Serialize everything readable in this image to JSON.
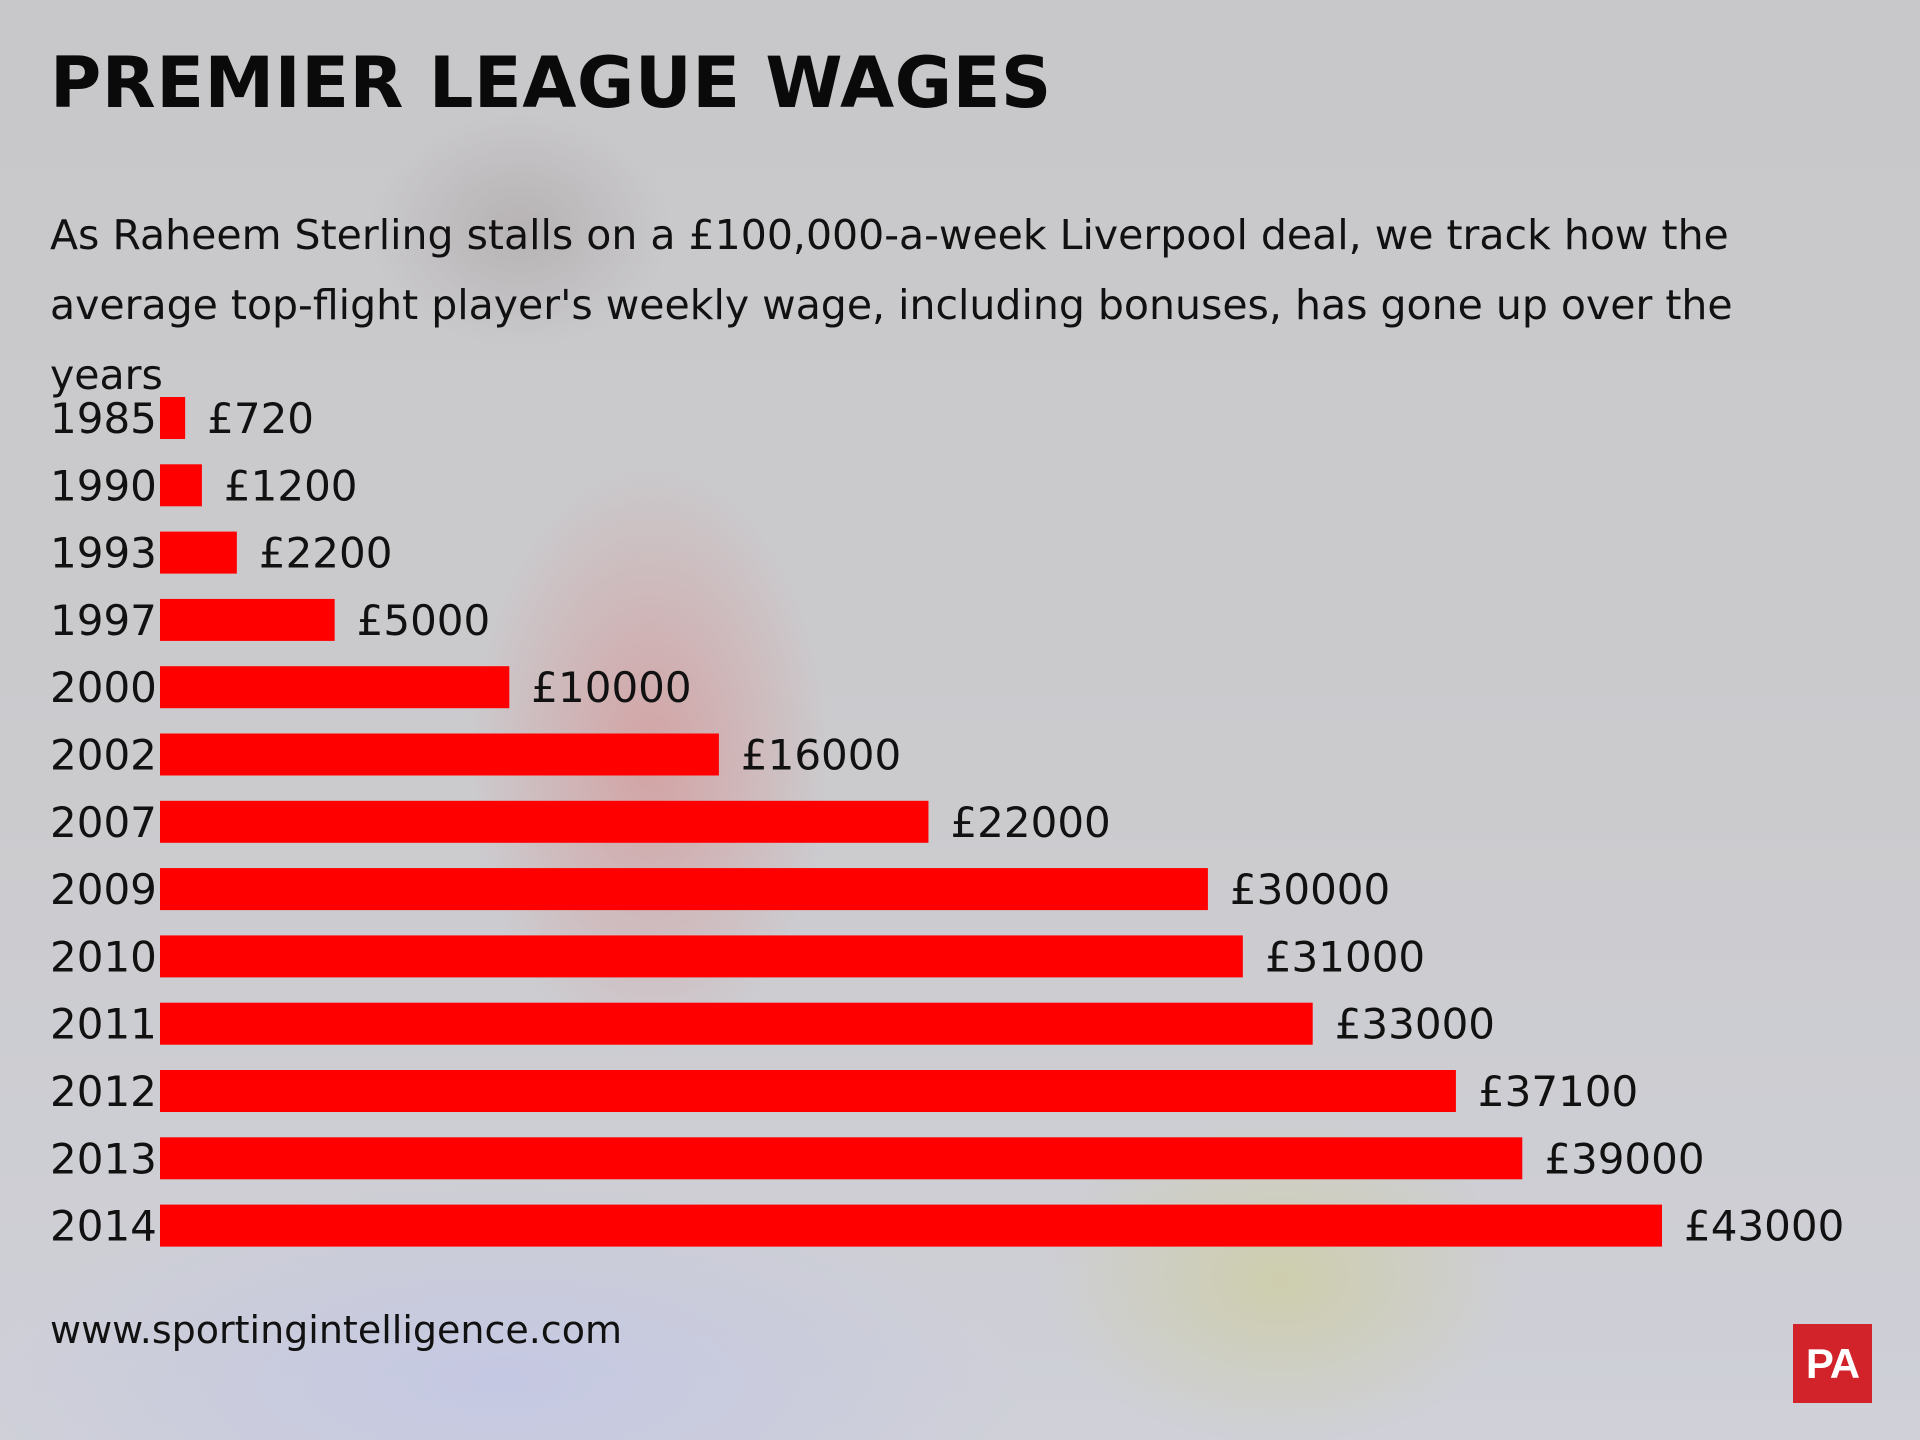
{
  "header": {
    "title": "PREMIER LEAGUE WAGES",
    "subtitle": "As Raheem Sterling stalls on a £100,000-a-week Liverpool deal, we track how the average top-flight player's weekly wage, including bonuses, has gone up over the years"
  },
  "footer": {
    "source": "www.sportingintelligence.com",
    "logo_text": "PA"
  },
  "colors": {
    "bar": "#ff0000",
    "text": "#111111",
    "logo": "#d2232a"
  },
  "chart_data": {
    "type": "bar",
    "orientation": "horizontal",
    "categories": [
      "1985",
      "1990",
      "1993",
      "1997",
      "2000",
      "2002",
      "2007",
      "2009",
      "2010",
      "2011",
      "2012",
      "2013",
      "2014"
    ],
    "values": [
      720,
      1200,
      2200,
      5000,
      10000,
      16000,
      22000,
      30000,
      31000,
      33000,
      37100,
      39000,
      43000
    ],
    "value_labels": [
      "£720",
      "£1200",
      "£2200",
      "£5000",
      "£10000",
      "£16000",
      "£22000",
      "£30000",
      "£31000",
      "£33000",
      "£37100",
      "£39000",
      "£43000"
    ],
    "xlim": [
      0,
      43000
    ],
    "grid": false,
    "legend": "none"
  }
}
